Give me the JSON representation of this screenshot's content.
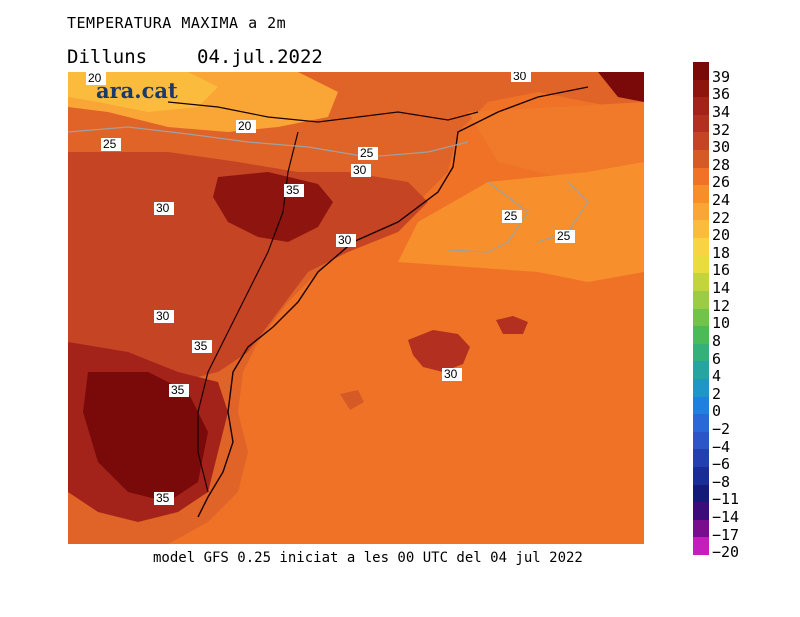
{
  "header": {
    "title": "TEMPERATURA MAXIMA a 2m",
    "day": "Dilluns",
    "date": "04.jul.2022"
  },
  "footer": {
    "text": "model GFS 0.25 iniciat a les 00 UTC del 04 jul 2022"
  },
  "logo": {
    "text": "ara.cat"
  },
  "map": {
    "contour_labels": [
      "20",
      "20",
      "25",
      "25",
      "25",
      "25",
      "30",
      "30",
      "30",
      "30",
      "30",
      "30",
      "35",
      "35",
      "35",
      "35"
    ]
  },
  "legend": {
    "levels": [
      {
        "label": "39",
        "color": "#7a0a0a"
      },
      {
        "label": "36",
        "color": "#8e1410"
      },
      {
        "label": "34",
        "color": "#a3221a"
      },
      {
        "label": "32",
        "color": "#b33020"
      },
      {
        "label": "30",
        "color": "#c44424"
      },
      {
        "label": "28",
        "color": "#d65a26"
      },
      {
        "label": "26",
        "color": "#f07226"
      },
      {
        "label": "24",
        "color": "#f78e2a"
      },
      {
        "label": "22",
        "color": "#f9a637"
      },
      {
        "label": "20",
        "color": "#fbbb3c"
      },
      {
        "label": "18",
        "color": "#f8d343"
      },
      {
        "label": "16",
        "color": "#e8dc3e"
      },
      {
        "label": "14",
        "color": "#c4d43c"
      },
      {
        "label": "12",
        "color": "#9ccc44"
      },
      {
        "label": "10",
        "color": "#72c34a"
      },
      {
        "label": "8",
        "color": "#4bbb58"
      },
      {
        "label": "6",
        "color": "#34b07a"
      },
      {
        "label": "4",
        "color": "#26a5a0"
      },
      {
        "label": "2",
        "color": "#1e96c8"
      },
      {
        "label": "0",
        "color": "#1f80e0"
      },
      {
        "label": "−2",
        "color": "#2a68d8"
      },
      {
        "label": "−4",
        "color": "#2c56c8"
      },
      {
        "label": "−6",
        "color": "#2440b0"
      },
      {
        "label": "−8",
        "color": "#1a2c96"
      },
      {
        "label": "−11",
        "color": "#141a78"
      },
      {
        "label": "−14",
        "color": "#3c0c7a"
      },
      {
        "label": "−17",
        "color": "#7a0c8e"
      },
      {
        "label": "−20",
        "color": "#c41ebc"
      }
    ]
  }
}
